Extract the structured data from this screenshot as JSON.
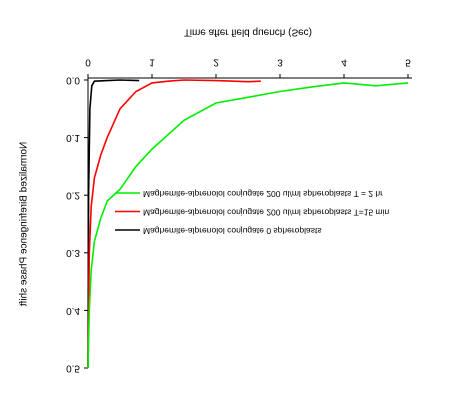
{
  "chart_data": {
    "type": "line",
    "xlabel": "Time after field quench (Sec)",
    "ylabel": "Normalized Birefringence Phase shift",
    "xlim": [
      0,
      5
    ],
    "xticks": [
      0,
      1,
      2,
      3,
      4,
      5
    ],
    "ylim": [
      0,
      0.5
    ],
    "yticks": [
      {
        "value": 0,
        "label": "0.0"
      },
      {
        "value": 0.1,
        "label": "0.1"
      },
      {
        "value": 0.2,
        "label": "0.2"
      },
      {
        "value": 0.3,
        "label": "0.3"
      },
      {
        "value": 0.4,
        "label": "0.4"
      },
      {
        "value": 0.5,
        "label": "0.5"
      }
    ],
    "flipped_vertically": true,
    "series": [
      {
        "name": "Maghemite-alprenolol conjugate 0 spheroplasts",
        "color": "#000000",
        "x": [
          0,
          0.01,
          0.03,
          0.06,
          0.1,
          0.3,
          0.5,
          0.8
        ],
        "values": [
          0.5,
          0.2,
          0.05,
          0.01,
          0.002,
          0.001,
          0,
          0.001
        ]
      },
      {
        "name": "Maghemite-alprenolol conjugate 200 ul/ml spheroplasts T=15 min",
        "color": "#ff0000",
        "x": [
          0,
          0.02,
          0.05,
          0.1,
          0.2,
          0.3,
          0.5,
          0.75,
          1,
          1.25,
          1.5,
          2,
          2.5,
          2.7
        ],
        "values": [
          0.5,
          0.3,
          0.22,
          0.17,
          0.13,
          0.1,
          0.05,
          0.02,
          0.005,
          0.002,
          0,
          0.001,
          0.003,
          0.002
        ]
      },
      {
        "name": "Maghemite-alprenolol conjugate 200 ul/ml spheroplasts T = 2 hr",
        "color": "#00ee00",
        "x": [
          0,
          0.02,
          0.05,
          0.1,
          0.2,
          0.3,
          0.5,
          0.75,
          1,
          1.5,
          2,
          2.5,
          3,
          3.5,
          4,
          4.5,
          5
        ],
        "values": [
          0.5,
          0.4,
          0.33,
          0.28,
          0.24,
          0.21,
          0.19,
          0.15,
          0.12,
          0.07,
          0.04,
          0.03,
          0.02,
          0.012,
          0.005,
          0.01,
          0.005
        ]
      }
    ]
  }
}
